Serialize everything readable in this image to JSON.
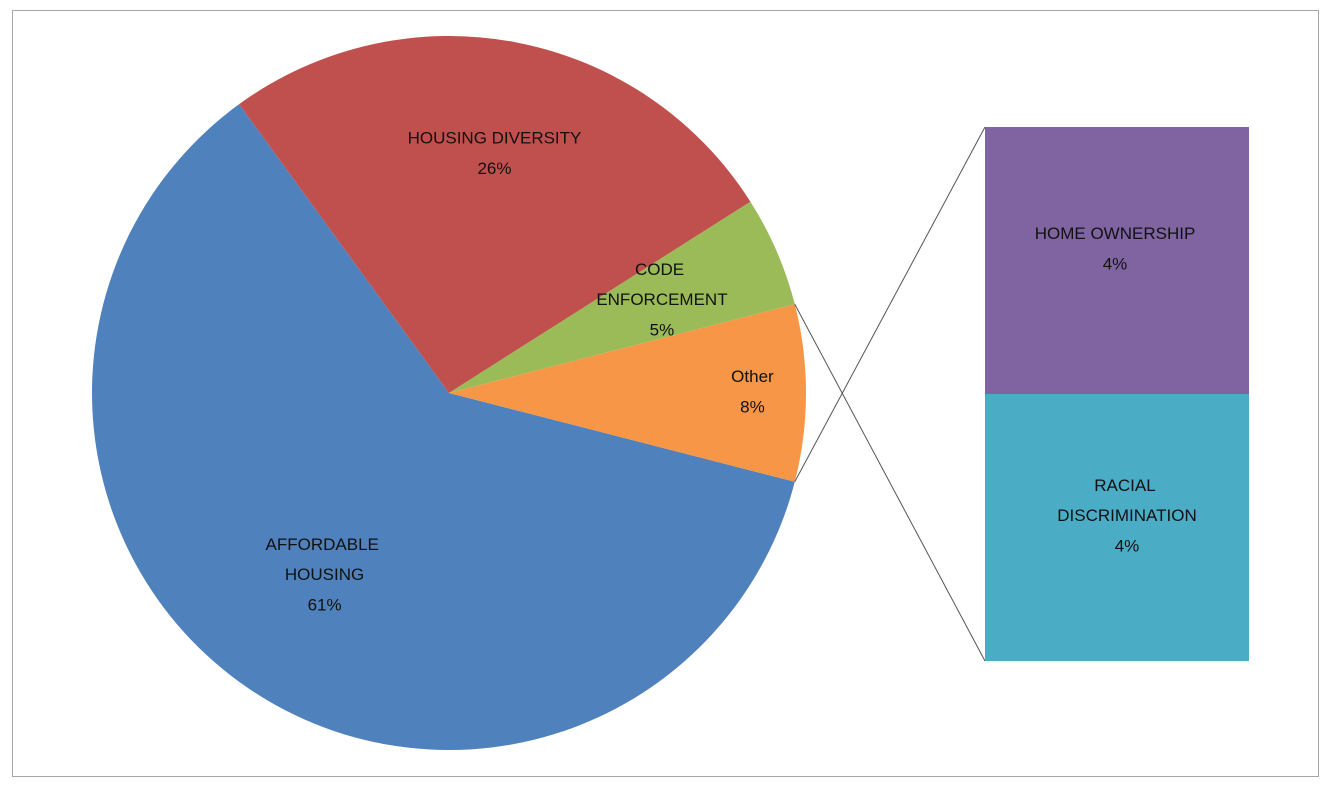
{
  "chart_data": {
    "type": "pie",
    "categories": [
      "AFFORDABLE HOUSING",
      "HOUSING DIVERSITY",
      "CODE ENFORCEMENT",
      "Other"
    ],
    "values": [
      61,
      26,
      5,
      8
    ],
    "value_labels": [
      "61%",
      "26%",
      "5%",
      "8%"
    ],
    "colors": [
      "#4f81bd",
      "#c0504d",
      "#9bbb59",
      "#f79646"
    ],
    "breakout": {
      "categories": [
        "HOME OWNERSHIP",
        "RACIAL DISCRIMINATION"
      ],
      "values": [
        4,
        4
      ],
      "value_labels": [
        "4%",
        "4%"
      ],
      "colors": [
        "#8064a2",
        "#4bacc6"
      ]
    }
  }
}
